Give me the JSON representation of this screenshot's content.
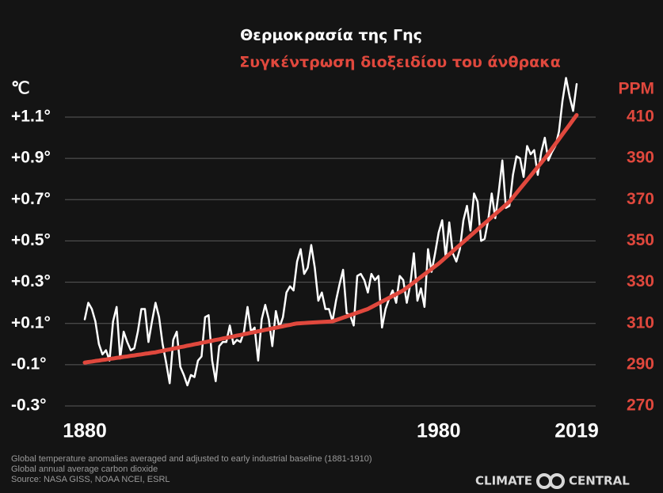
{
  "chart_data": {
    "type": "line",
    "x": [
      1880,
      1881,
      1882,
      1883,
      1884,
      1885,
      1886,
      1887,
      1888,
      1889,
      1890,
      1891,
      1892,
      1893,
      1894,
      1895,
      1896,
      1897,
      1898,
      1899,
      1900,
      1901,
      1902,
      1903,
      1904,
      1905,
      1906,
      1907,
      1908,
      1909,
      1910,
      1911,
      1912,
      1913,
      1914,
      1915,
      1916,
      1917,
      1918,
      1919,
      1920,
      1921,
      1922,
      1923,
      1924,
      1925,
      1926,
      1927,
      1928,
      1929,
      1930,
      1931,
      1932,
      1933,
      1934,
      1935,
      1936,
      1937,
      1938,
      1939,
      1940,
      1941,
      1942,
      1943,
      1944,
      1945,
      1946,
      1947,
      1948,
      1949,
      1950,
      1951,
      1952,
      1953,
      1954,
      1955,
      1956,
      1957,
      1958,
      1959,
      1960,
      1961,
      1962,
      1963,
      1964,
      1965,
      1966,
      1967,
      1968,
      1969,
      1970,
      1971,
      1972,
      1973,
      1974,
      1975,
      1976,
      1977,
      1978,
      1979,
      1980,
      1981,
      1982,
      1983,
      1984,
      1985,
      1986,
      1987,
      1988,
      1989,
      1990,
      1991,
      1992,
      1993,
      1994,
      1995,
      1996,
      1997,
      1998,
      1999,
      2000,
      2001,
      2002,
      2003,
      2004,
      2005,
      2006,
      2007,
      2008,
      2009,
      2010,
      2011,
      2012,
      2013,
      2014,
      2015,
      2016,
      2017,
      2018,
      2019
    ],
    "series": [
      {
        "name": "Θερμοκρασία της Γης",
        "color": "#ffffff",
        "axis": "y",
        "values": [
          0.12,
          0.2,
          0.17,
          0.11,
          0.0,
          -0.05,
          -0.03,
          -0.08,
          0.11,
          0.18,
          -0.07,
          0.06,
          0.01,
          -0.03,
          -0.02,
          0.06,
          0.17,
          0.17,
          0.01,
          0.11,
          0.2,
          0.13,
          0.0,
          -0.09,
          -0.19,
          0.02,
          0.06,
          -0.11,
          -0.15,
          -0.2,
          -0.15,
          -0.16,
          -0.08,
          -0.06,
          0.13,
          0.14,
          -0.08,
          -0.18,
          -0.01,
          0.01,
          0.01,
          0.09,
          0.0,
          0.02,
          0.01,
          0.06,
          0.18,
          0.06,
          0.08,
          -0.08,
          0.12,
          0.19,
          0.12,
          -0.01,
          0.16,
          0.08,
          0.13,
          0.25,
          0.28,
          0.26,
          0.4,
          0.46,
          0.34,
          0.37,
          0.48,
          0.37,
          0.21,
          0.25,
          0.17,
          0.17,
          0.11,
          0.21,
          0.29,
          0.36,
          0.15,
          0.14,
          0.09,
          0.33,
          0.34,
          0.31,
          0.25,
          0.34,
          0.31,
          0.33,
          0.08,
          0.17,
          0.22,
          0.26,
          0.2,
          0.33,
          0.31,
          0.2,
          0.29,
          0.44,
          0.21,
          0.27,
          0.18,
          0.46,
          0.35,
          0.44,
          0.54,
          0.6,
          0.42,
          0.59,
          0.44,
          0.4,
          0.46,
          0.6,
          0.67,
          0.55,
          0.73,
          0.69,
          0.5,
          0.51,
          0.6,
          0.73,
          0.61,
          0.74,
          0.89,
          0.66,
          0.67,
          0.82,
          0.91,
          0.9,
          0.81,
          0.96,
          0.92,
          0.94,
          0.82,
          0.93,
          1.0,
          0.89,
          0.93,
          0.96,
          1.03,
          1.18,
          1.29,
          1.2,
          1.13,
          1.26
        ]
      },
      {
        "name": "Συγκέντρωση διοξειδίου του άνθρακα",
        "color": "#e0483d",
        "axis": "y2",
        "values": [
          291,
          291.3,
          291.5,
          291.8,
          292,
          292.3,
          292.5,
          292.8,
          293,
          293.3,
          293.5,
          293.8,
          294,
          294.3,
          294.5,
          294.8,
          295,
          295.3,
          295.5,
          295.8,
          296,
          296.4,
          296.7,
          297.1,
          297.4,
          297.8,
          298.1,
          298.5,
          298.8,
          299.2,
          299.5,
          299.9,
          300.2,
          300.6,
          300.9,
          301.3,
          301.6,
          302,
          302.3,
          302.7,
          303,
          303.4,
          303.7,
          304.1,
          304.4,
          304.8,
          305.1,
          305.5,
          305.8,
          306.2,
          306.5,
          306.9,
          307.2,
          307.6,
          307.9,
          308.3,
          308.6,
          309,
          309.3,
          309.7,
          310,
          310.1,
          310.2,
          310.3,
          310.4,
          310.5,
          310.6,
          310.7,
          310.8,
          310.9,
          311,
          311.6,
          312.2,
          312.8,
          313.4,
          314,
          314.6,
          315.2,
          315.8,
          316.4,
          317,
          317.9,
          318.8,
          319.7,
          320.6,
          321.5,
          322.4,
          323.3,
          324.2,
          325.1,
          326,
          327.3,
          328.6,
          329.9,
          331.2,
          332.5,
          333.8,
          335.1,
          336.4,
          337.7,
          339,
          340.5,
          342,
          343.5,
          345,
          346.5,
          348,
          349.5,
          351,
          352.5,
          354,
          355.5,
          357,
          358.5,
          360,
          361.5,
          363,
          364.5,
          366,
          367.5,
          369,
          371.1,
          373.2,
          375.3,
          377.4,
          379.5,
          381.6,
          383.7,
          385.8,
          387.9,
          390,
          392.3,
          394.7,
          397,
          399.3,
          401.7,
          404,
          406.3,
          408.7,
          411
        ]
      }
    ],
    "y_label": "℃",
    "y2_label": "PPM",
    "xlim": [
      1880,
      2019
    ],
    "xticks": [
      1880,
      1980,
      2019
    ],
    "ylim": [
      -0.3,
      1.1
    ],
    "yticks": [
      {
        "value": -0.3,
        "label": "-0.3°"
      },
      {
        "value": -0.1,
        "label": "-0.1°"
      },
      {
        "value": 0.1,
        "label": "+0.1°"
      },
      {
        "value": 0.3,
        "label": "+0.3°"
      },
      {
        "value": 0.5,
        "label": "+0.5°"
      },
      {
        "value": 0.7,
        "label": "+0.7°"
      },
      {
        "value": 0.9,
        "label": "+0.9°"
      },
      {
        "value": 1.1,
        "label": "+1.1°"
      }
    ],
    "y2lim": [
      270,
      410
    ],
    "y2ticks": [
      270,
      290,
      310,
      330,
      350,
      370,
      390,
      410
    ],
    "grid": true,
    "notes": [
      "Global temperature anomalies averaged and adjusted to early industrial baseline (1881-1910)",
      "Global annual average carbon dioxide",
      "Source: NASA GISS, NOAA NCEI, ESRL"
    ],
    "logo": [
      "CLIMATE",
      "CENTRAL"
    ]
  }
}
